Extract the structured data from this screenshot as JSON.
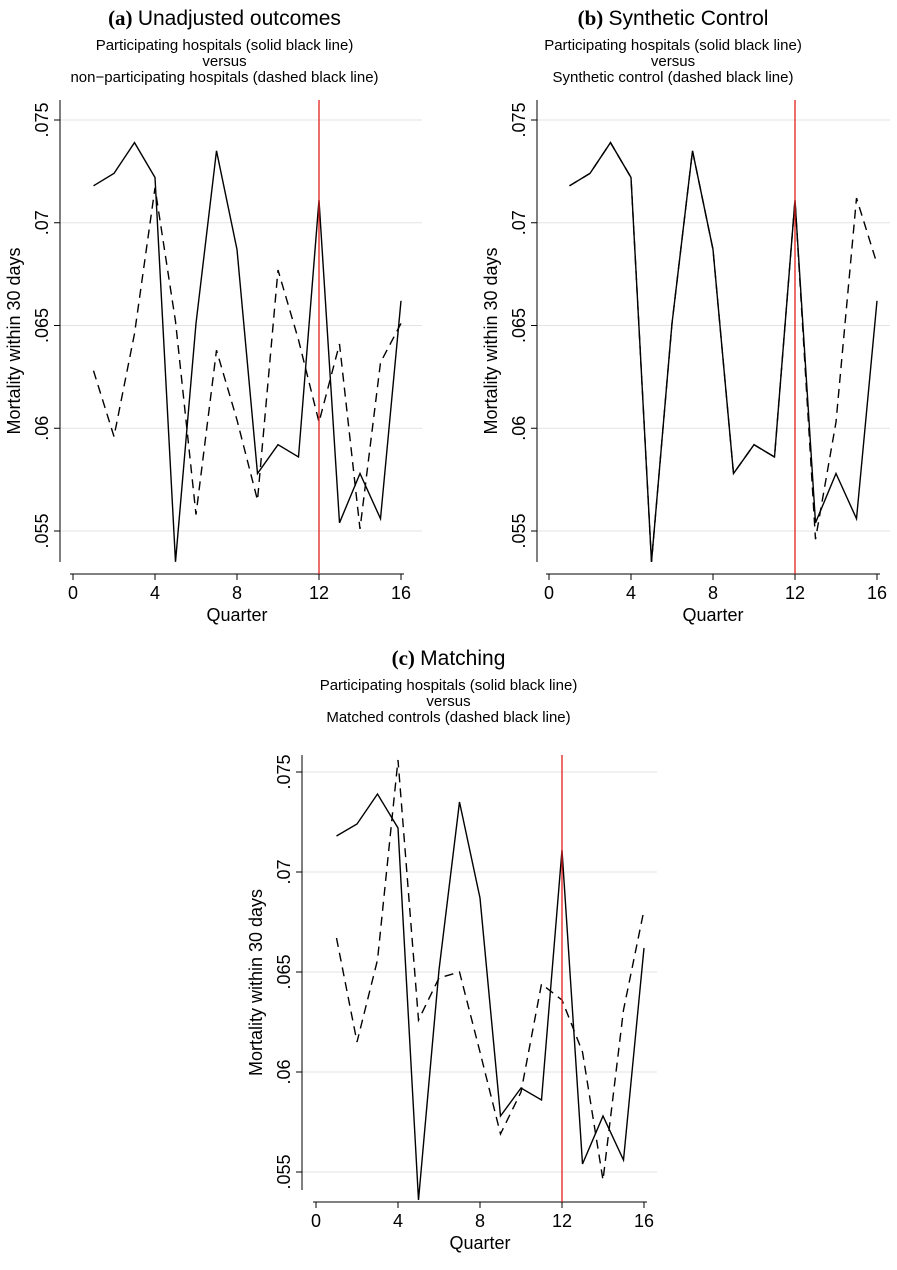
{
  "chart_data": [
    {
      "type": "line",
      "panel_label": "(a)",
      "title": "Unadjusted outcomes",
      "subtitle": [
        "Participating hospitals (solid black line)",
        "versus",
        "non−participating hospitals (dashed black line)"
      ],
      "xlabel": "Quarter",
      "ylabel": "Mortality within 30 days",
      "xlim": [
        0,
        16
      ],
      "ylim": [
        0.0535,
        0.0755
      ],
      "xticks": [
        "0",
        "4",
        "8",
        "12",
        "16"
      ],
      "yticks": [
        ".055",
        ".06",
        ".065",
        ".07",
        ".075"
      ],
      "grid": true,
      "vline_x": 12,
      "vline_color": "#e0201b",
      "x": [
        1,
        2,
        3,
        4,
        5,
        6,
        7,
        8,
        9,
        10,
        11,
        12,
        13,
        14,
        15,
        16
      ],
      "series": [
        {
          "style": "solid",
          "values": [
            0.0718,
            0.0724,
            0.0739,
            0.0722,
            0.0535,
            0.0651,
            0.0735,
            0.0687,
            0.0578,
            0.0592,
            0.0586,
            0.0711,
            0.0554,
            0.0578,
            0.0556,
            0.0662
          ]
        },
        {
          "style": "dashed",
          "values": [
            0.0628,
            0.0596,
            0.0646,
            0.0717,
            0.0652,
            0.0558,
            0.0638,
            0.0604,
            0.0565,
            0.0677,
            0.0643,
            0.0603,
            0.0641,
            0.0551,
            0.0632,
            0.0651
          ]
        }
      ]
    },
    {
      "type": "line",
      "panel_label": "(b)",
      "title": "Synthetic Control",
      "subtitle": [
        "Participating hospitals (solid black line)",
        "versus",
        "Synthetic control (dashed black line)"
      ],
      "xlabel": "Quarter",
      "ylabel": "Mortality within 30 days",
      "xlim": [
        0,
        16
      ],
      "ylim": [
        0.0535,
        0.0755
      ],
      "xticks": [
        "0",
        "4",
        "8",
        "12",
        "16"
      ],
      "yticks": [
        ".055",
        ".06",
        ".065",
        ".07",
        ".075"
      ],
      "grid": true,
      "vline_x": 12,
      "vline_color": "#e0201b",
      "x": [
        1,
        2,
        3,
        4,
        5,
        6,
        7,
        8,
        9,
        10,
        11,
        12,
        13,
        14,
        15,
        16
      ],
      "series": [
        {
          "style": "solid",
          "values": [
            0.0718,
            0.0724,
            0.0739,
            0.0722,
            0.0535,
            0.0651,
            0.0735,
            0.0687,
            0.0578,
            0.0592,
            0.0586,
            0.0711,
            0.0554,
            0.0578,
            0.0556,
            0.0662
          ]
        },
        {
          "style": "dashed",
          "values": [
            0.0718,
            0.0724,
            0.0739,
            0.0722,
            0.0535,
            0.0651,
            0.0735,
            0.0687,
            0.0578,
            0.0592,
            0.0586,
            0.0711,
            0.0546,
            0.0603,
            0.0712,
            0.068
          ]
        }
      ]
    },
    {
      "type": "line",
      "panel_label": "(c)",
      "title": "Matching",
      "subtitle": [
        "Participating hospitals (solid black line)",
        "versus",
        "Matched controls (dashed black line)"
      ],
      "xlabel": "Quarter",
      "ylabel": "Mortality within 30 days",
      "xlim": [
        0,
        16
      ],
      "ylim": [
        0.0535,
        0.0758
      ],
      "xticks": [
        "0",
        "4",
        "8",
        "12",
        "16"
      ],
      "yticks": [
        ".055",
        ".06",
        ".065",
        ".07",
        ".075"
      ],
      "grid": true,
      "vline_x": 12,
      "vline_color": "#e0201b",
      "x": [
        1,
        2,
        3,
        4,
        5,
        6,
        7,
        8,
        9,
        10,
        11,
        12,
        13,
        14,
        15,
        16
      ],
      "series": [
        {
          "style": "solid",
          "values": [
            0.0718,
            0.0724,
            0.0739,
            0.0722,
            0.0536,
            0.0651,
            0.0735,
            0.0687,
            0.0578,
            0.0592,
            0.0586,
            0.0711,
            0.0554,
            0.0578,
            0.0556,
            0.0662
          ]
        },
        {
          "style": "dashed",
          "values": [
            0.0667,
            0.0615,
            0.0656,
            0.0756,
            0.0626,
            0.0647,
            0.065,
            0.061,
            0.0569,
            0.059,
            0.0644,
            0.0636,
            0.061,
            0.0546,
            0.0631,
            0.0681
          ]
        }
      ]
    }
  ]
}
